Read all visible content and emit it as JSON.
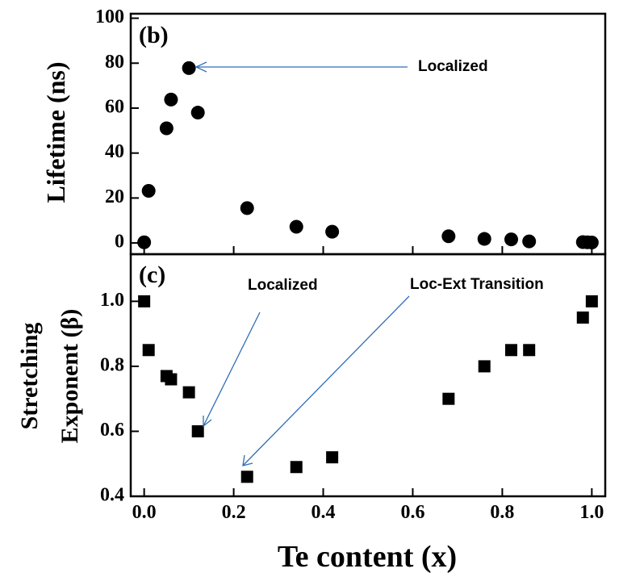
{
  "chart_data": [
    {
      "panel_label": "(b)",
      "type": "scatter",
      "ylabel": "Lifetime (ns)",
      "ylim": [
        -5,
        102
      ],
      "yticks": [
        0,
        20,
        40,
        60,
        80,
        100
      ],
      "xlim": [
        -0.03,
        1.03
      ],
      "marker": "circle",
      "color": "#000000",
      "series": [
        {
          "x": [
            0.0,
            0.01,
            0.05,
            0.06,
            0.1,
            0.12,
            0.23,
            0.34,
            0.42,
            0.68,
            0.76,
            0.82,
            0.86,
            0.98,
            0.99,
            1.0
          ],
          "y": [
            0.3,
            23.2,
            51,
            63.8,
            77.8,
            58,
            15.5,
            7.2,
            5.0,
            3.0,
            1.8,
            1.6,
            0.7,
            0.4,
            0.3,
            0.2
          ]
        }
      ],
      "annotations": [
        {
          "text": "Localized",
          "points_to": [
            0.1,
            77.8
          ]
        }
      ]
    },
    {
      "panel_label": "(c)",
      "type": "scatter",
      "ylabel_line1": "Stretching",
      "ylabel_line2": "Exponent (β)",
      "ylim": [
        0.4,
        1.145
      ],
      "yticks": [
        0.4,
        0.6,
        0.8,
        1.0
      ],
      "ytick_labels": [
        "0.4",
        "0.6",
        "0.8",
        "1.0"
      ],
      "xlim": [
        -0.03,
        1.03
      ],
      "xlabel": "Te content (x)",
      "xticks": [
        0.0,
        0.2,
        0.4,
        0.6,
        0.8,
        1.0
      ],
      "xtick_labels": [
        "0.0",
        "0.2",
        "0.4",
        "0.6",
        "0.8",
        "1.0"
      ],
      "marker": "square",
      "color": "#000000",
      "series": [
        {
          "x": [
            0.0,
            0.01,
            0.05,
            0.06,
            0.1,
            0.12,
            0.23,
            0.34,
            0.42,
            0.68,
            0.76,
            0.82,
            0.86,
            0.98,
            1.0
          ],
          "y": [
            1.0,
            0.85,
            0.77,
            0.76,
            0.72,
            0.6,
            0.46,
            0.49,
            0.52,
            0.7,
            0.8,
            0.85,
            0.85,
            0.95,
            1.0
          ]
        }
      ],
      "annotations": [
        {
          "text": "Localized",
          "points_to": [
            0.12,
            0.6
          ]
        },
        {
          "text": "Loc-Ext Transition",
          "points_to": [
            0.23,
            0.46
          ]
        }
      ]
    }
  ]
}
